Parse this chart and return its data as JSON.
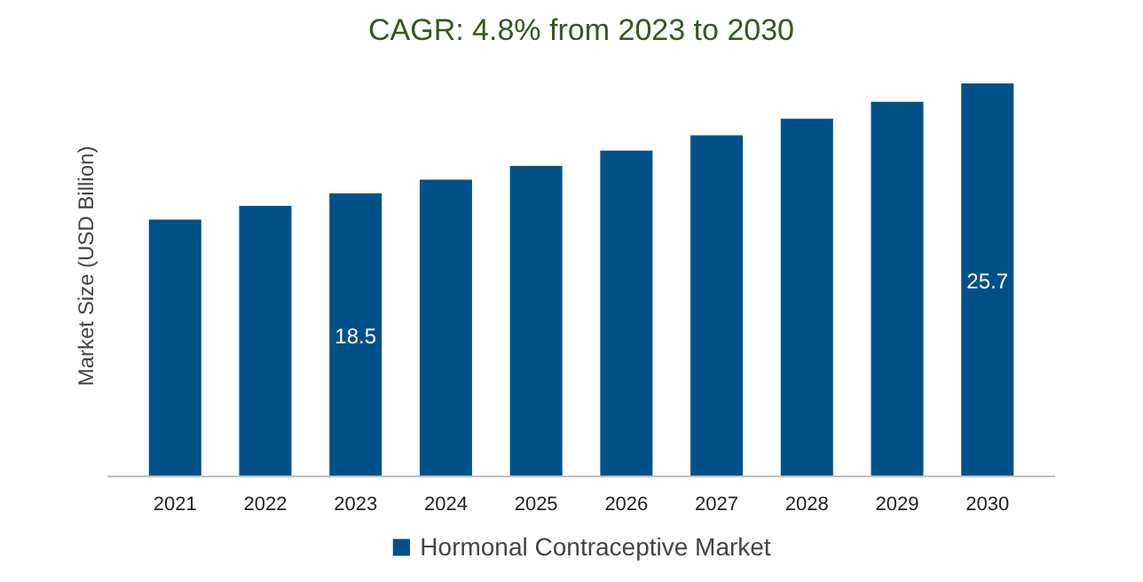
{
  "chart_data": {
    "type": "bar",
    "title": "CAGR: 4.8% from 2023 to 2030",
    "ylabel": "Market Size (USD Billion)",
    "categories": [
      "2021",
      "2022",
      "2023",
      "2024",
      "2025",
      "2026",
      "2027",
      "2028",
      "2029",
      "2030"
    ],
    "series": [
      {
        "name": "Hormonal Contraceptive Market",
        "color": "#00518a",
        "values": [
          16.8,
          17.7,
          18.5,
          19.4,
          20.3,
          21.3,
          22.3,
          23.4,
          24.5,
          25.7
        ],
        "value_labels": [
          null,
          null,
          "18.5",
          null,
          null,
          null,
          null,
          null,
          null,
          "25.7"
        ]
      }
    ],
    "legend": "bottom"
  }
}
